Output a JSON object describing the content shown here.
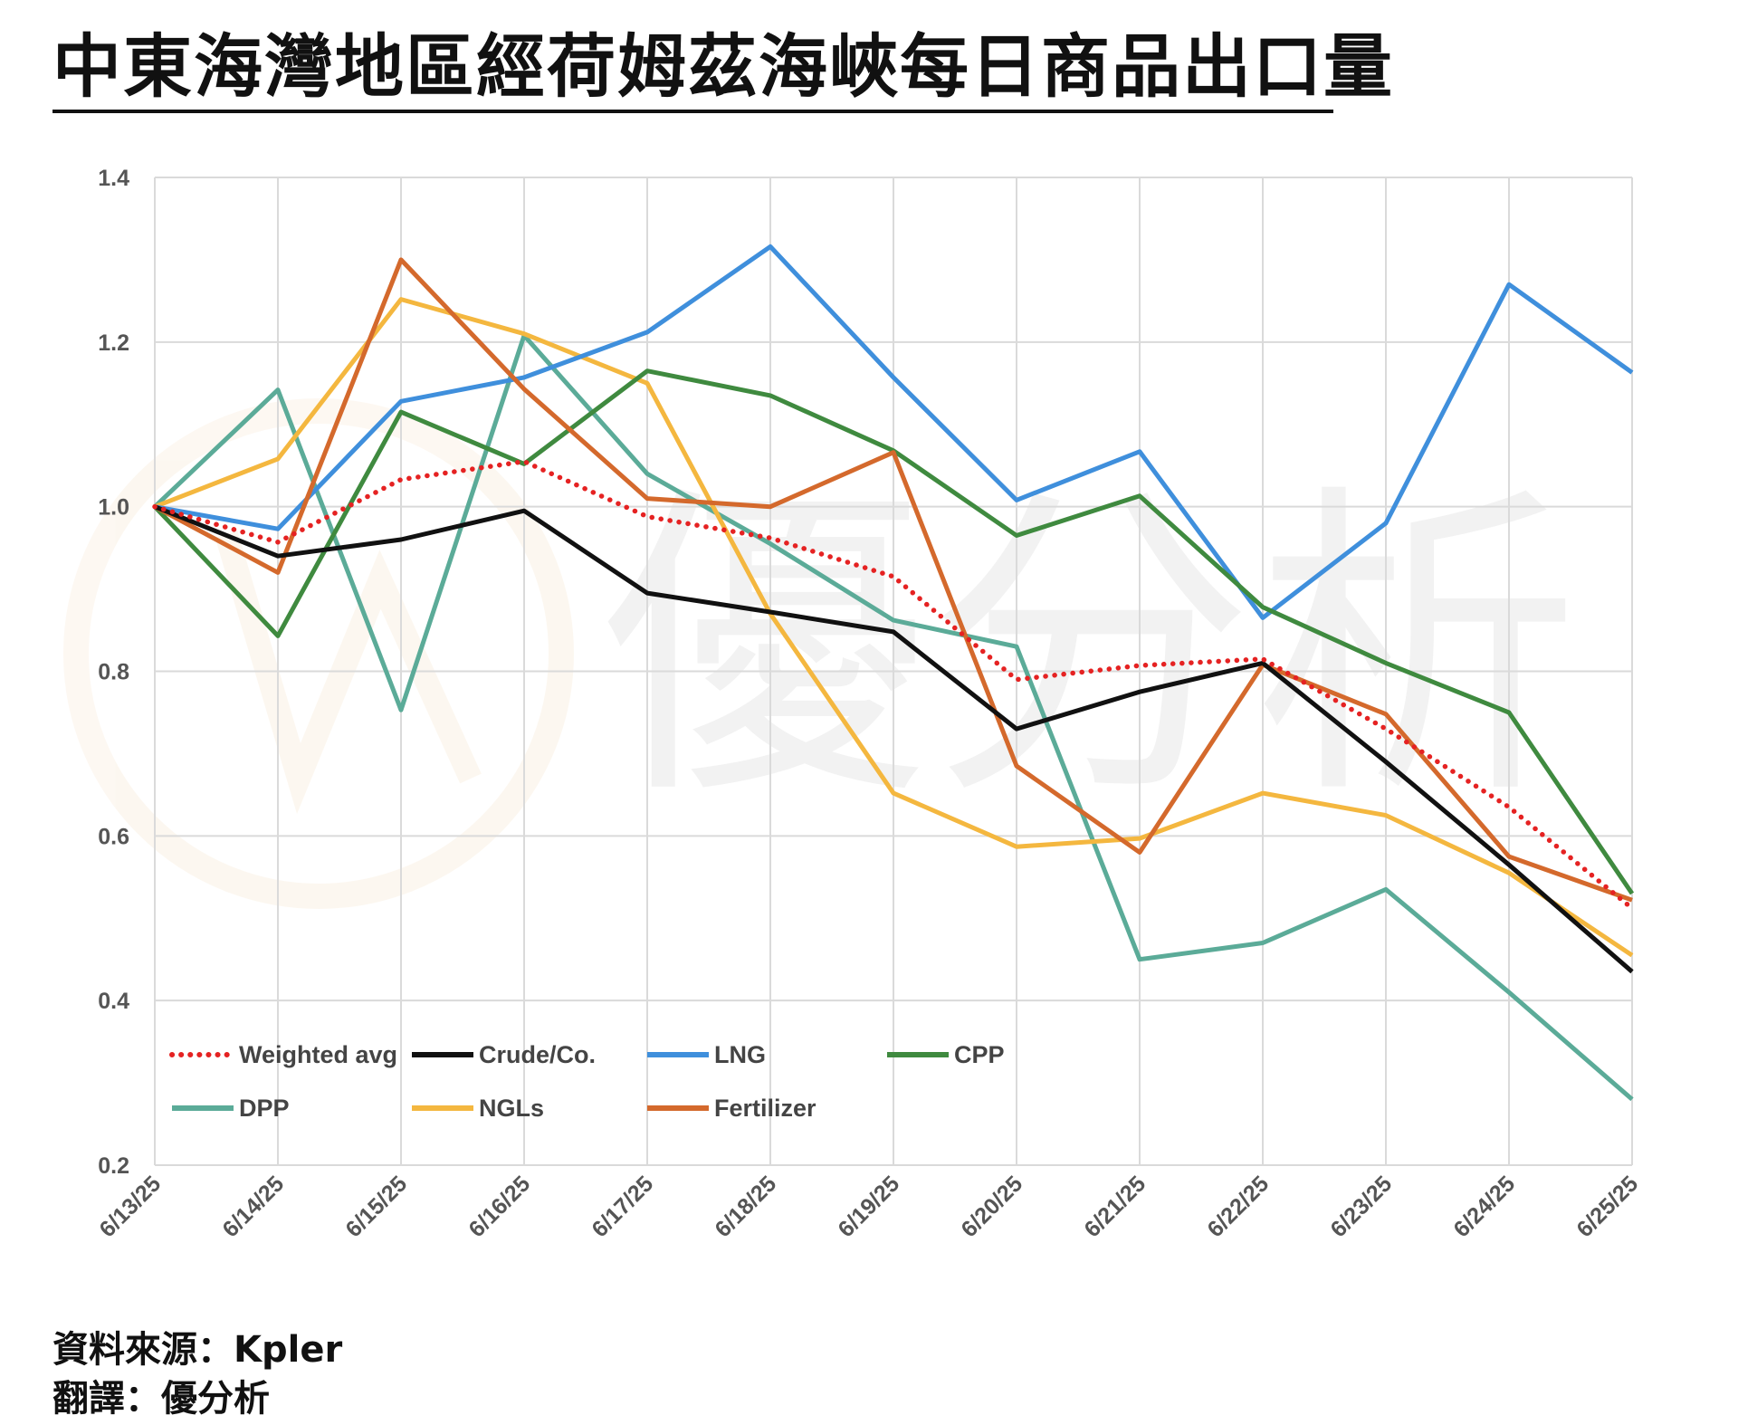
{
  "title": "中東海灣地區經荷姆茲海峽每日商品出口量",
  "footer": {
    "source": "資料來源：Kpler",
    "translation": "翻譯：優分析"
  },
  "watermark": {
    "text": "優分析"
  },
  "chart_data": {
    "type": "line",
    "title": "",
    "xlabel": "",
    "ylabel": "",
    "ylim": [
      0.2,
      1.4
    ],
    "yticks": [
      "1.4",
      "1.2",
      "1.0",
      "0.8",
      "0.6",
      "0.4",
      "0.2"
    ],
    "grid": true,
    "legend_position": "bottom-left",
    "categories": [
      "6/13/25",
      "6/14/25",
      "6/15/25",
      "6/16/25",
      "6/17/25",
      "6/18/25",
      "6/19/25",
      "6/20/25",
      "6/21/25",
      "6/22/25",
      "6/23/25",
      "6/24/25",
      "6/25/25"
    ],
    "series": [
      {
        "name": "DPP",
        "color": "#5bab98",
        "dash": false,
        "values": [
          1.0,
          1.142,
          0.753,
          1.208,
          1.04,
          0.955,
          0.862,
          0.83,
          0.45,
          0.47,
          0.535,
          0.41,
          0.28
        ]
      },
      {
        "name": "NGLs",
        "color": "#f4b73f",
        "dash": false,
        "values": [
          1.0,
          1.058,
          1.252,
          1.21,
          1.15,
          0.87,
          0.652,
          0.587,
          0.597,
          0.652,
          0.625,
          0.555,
          0.455
        ]
      },
      {
        "name": "LNG",
        "color": "#3f8fdc",
        "dash": false,
        "values": [
          1.0,
          0.973,
          1.128,
          1.157,
          1.212,
          1.316,
          1.157,
          1.008,
          1.067,
          0.865,
          0.98,
          1.27,
          1.163
        ]
      },
      {
        "name": "CPP",
        "color": "#3f8a3f",
        "dash": false,
        "values": [
          1.0,
          0.843,
          1.115,
          1.052,
          1.165,
          1.135,
          1.068,
          0.965,
          1.013,
          0.878,
          0.81,
          0.75,
          0.53
        ]
      },
      {
        "name": "Fertilizer",
        "color": "#d4692c",
        "dash": false,
        "values": [
          1.0,
          0.92,
          1.3,
          1.143,
          1.01,
          1.0,
          1.066,
          0.685,
          0.58,
          0.808,
          0.748,
          0.575,
          0.522
        ]
      },
      {
        "name": "Crude/Co.",
        "color": "#111111",
        "dash": false,
        "values": [
          1.0,
          0.94,
          0.96,
          0.995,
          0.895,
          0.872,
          0.848,
          0.73,
          0.775,
          0.81,
          0.69,
          0.565,
          0.435
        ]
      },
      {
        "name": "Weighted avg",
        "color": "#e52222",
        "dash": true,
        "values": [
          1.0,
          0.957,
          1.033,
          1.055,
          0.988,
          0.962,
          0.915,
          0.79,
          0.807,
          0.815,
          0.73,
          0.635,
          0.512
        ]
      }
    ],
    "legend_order": [
      "Weighted avg",
      "Crude/Co.",
      "LNG",
      "CPP",
      "DPP",
      "NGLs",
      "Fertilizer"
    ]
  }
}
